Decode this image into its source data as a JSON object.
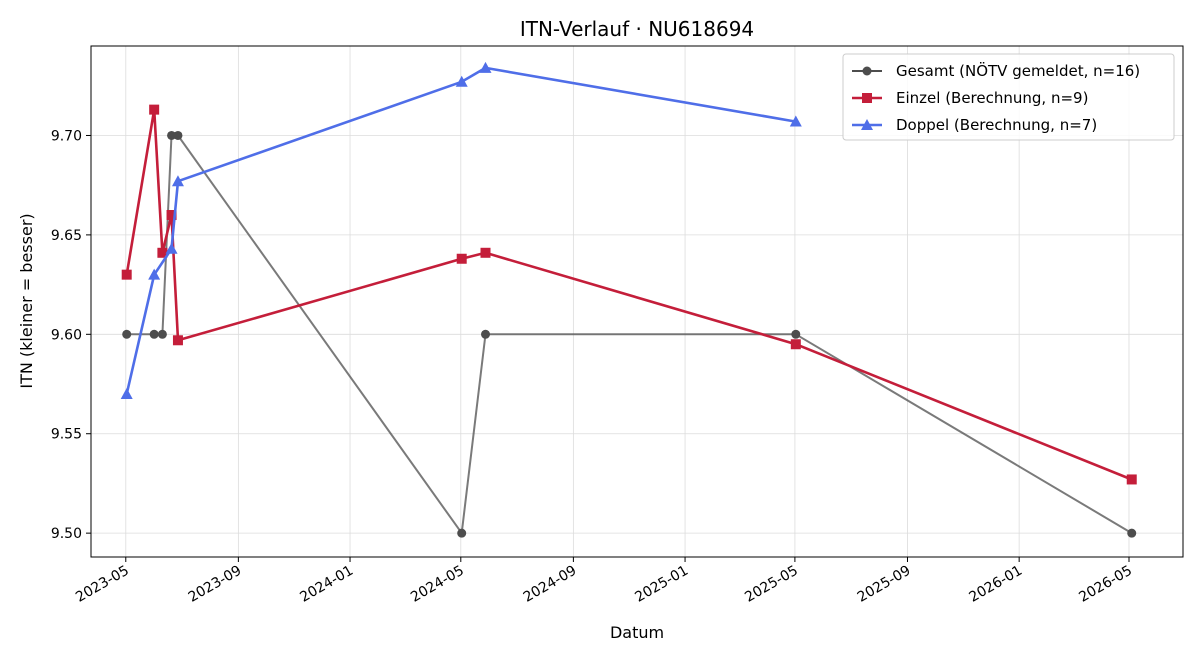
{
  "chart_data": {
    "type": "line",
    "title": "ITN-Verlauf · NU618694",
    "xlabel": "Datum",
    "ylabel": "ITN  (kleiner = besser)",
    "x_axis_type": "date",
    "xlim": [
      "2023-03-24",
      "2026-06-29"
    ],
    "ylim": [
      9.488,
      9.745
    ],
    "x_ticks": [
      "2023-05",
      "2023-09",
      "2024-01",
      "2024-05",
      "2024-09",
      "2025-01",
      "2025-05",
      "2025-09",
      "2026-01",
      "2026-05"
    ],
    "y_ticks": [
      "9.50",
      "9.55",
      "9.60",
      "9.65",
      "9.70"
    ],
    "y_tick_values": [
      9.5,
      9.55,
      9.6,
      9.65,
      9.7
    ],
    "grid": true,
    "legend_position": "top-right",
    "series": [
      {
        "name": "Gesamt (NÖTV gemeldet, n=16)",
        "color": "#4d4d4d",
        "marker": "circle",
        "points": [
          {
            "x": "2023-05-02",
            "y": 9.6
          },
          {
            "x": "2023-06-01",
            "y": 9.6
          },
          {
            "x": "2023-06-10",
            "y": 9.6
          },
          {
            "x": "2023-06-20",
            "y": 9.7
          },
          {
            "x": "2023-06-27",
            "y": 9.7
          },
          {
            "x": "2024-05-02",
            "y": 9.5
          },
          {
            "x": "2024-05-28",
            "y": 9.6
          },
          {
            "x": "2025-05-02",
            "y": 9.6
          },
          {
            "x": "2026-05-04",
            "y": 9.5
          }
        ]
      },
      {
        "name": "Einzel (Berechnung, n=9)",
        "color": "#c41e3a",
        "marker": "square",
        "points": [
          {
            "x": "2023-05-02",
            "y": 9.63
          },
          {
            "x": "2023-06-01",
            "y": 9.713
          },
          {
            "x": "2023-06-10",
            "y": 9.641
          },
          {
            "x": "2023-06-20",
            "y": 9.66
          },
          {
            "x": "2023-06-27",
            "y": 9.597
          },
          {
            "x": "2024-05-02",
            "y": 9.638
          },
          {
            "x": "2024-05-28",
            "y": 9.641
          },
          {
            "x": "2025-05-02",
            "y": 9.595
          },
          {
            "x": "2026-05-04",
            "y": 9.527
          }
        ]
      },
      {
        "name": "Doppel (Berechnung, n=7)",
        "color": "#4f6ee8",
        "marker": "triangle",
        "points": [
          {
            "x": "2023-05-02",
            "y": 9.57
          },
          {
            "x": "2023-06-01",
            "y": 9.63
          },
          {
            "x": "2023-06-20",
            "y": 9.643
          },
          {
            "x": "2023-06-27",
            "y": 9.677
          },
          {
            "x": "2024-05-02",
            "y": 9.727
          },
          {
            "x": "2024-05-28",
            "y": 9.734
          },
          {
            "x": "2025-05-02",
            "y": 9.707
          }
        ]
      }
    ]
  }
}
